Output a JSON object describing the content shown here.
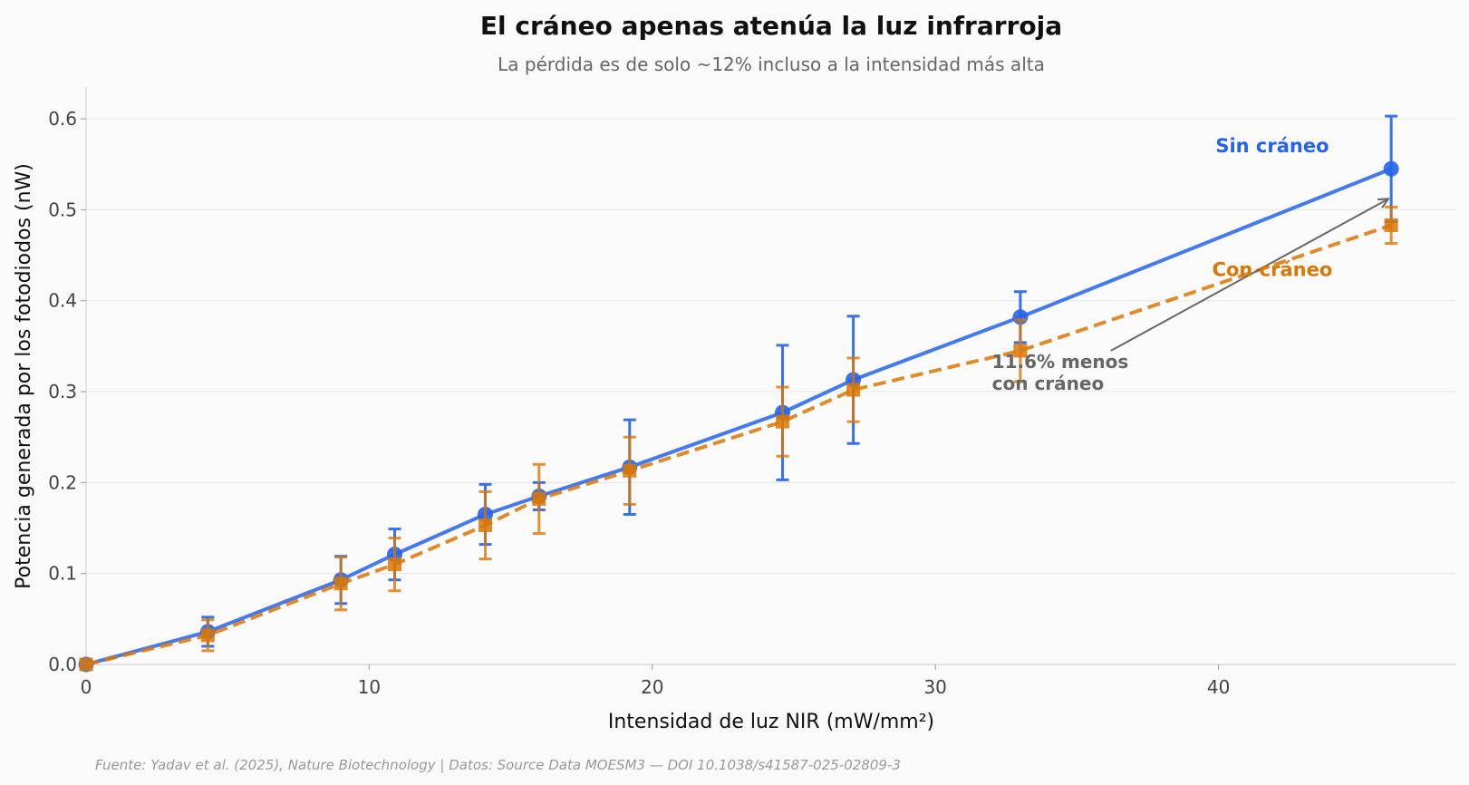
{
  "chart_data": {
    "type": "line",
    "title": "El cráneo apenas atenúa la luz infrarroja",
    "subtitle": "La pérdida es de solo ~12% incluso a la intensidad más alta",
    "xlabel": "Intensidad de luz NIR (mW/mm²)",
    "ylabel": "Potencia generada por los fotodiodos (nW)",
    "xlim": [
      0,
      48.4
    ],
    "ylim": [
      0,
      0.635
    ],
    "xticks": [
      0,
      10,
      20,
      30,
      40
    ],
    "xtick_labels": [
      "0",
      "10",
      "20",
      "30",
      "40"
    ],
    "yticks": [
      0.0,
      0.1,
      0.2,
      0.3,
      0.4,
      0.5,
      0.6
    ],
    "ytick_labels": [
      "0.0",
      "0.1",
      "0.2",
      "0.3",
      "0.4",
      "0.5",
      "0.6"
    ],
    "grid": "horizontal",
    "series": [
      {
        "name": "Sin cráneo",
        "color": "#2563eb",
        "line": "solid",
        "marker": "circle",
        "x": [
          0,
          4.3,
          9.0,
          10.9,
          14.1,
          16.0,
          19.2,
          24.6,
          27.1,
          33.0,
          46.1
        ],
        "y": [
          0.0,
          0.036,
          0.093,
          0.121,
          0.165,
          0.185,
          0.217,
          0.277,
          0.313,
          0.382,
          0.545
        ],
        "err": [
          0.0,
          0.016,
          0.026,
          0.028,
          0.033,
          0.015,
          0.052,
          0.074,
          0.07,
          0.028,
          0.058
        ]
      },
      {
        "name": "Con cráneo",
        "color": "#d97706",
        "line": "dashed",
        "marker": "square",
        "x": [
          0,
          4.3,
          9.0,
          10.9,
          14.1,
          16.0,
          19.2,
          24.6,
          27.1,
          33.0,
          46.1
        ],
        "y": [
          0.0,
          0.032,
          0.089,
          0.11,
          0.153,
          0.182,
          0.213,
          0.267,
          0.302,
          0.345,
          0.483
        ],
        "err": [
          0.0,
          0.017,
          0.029,
          0.029,
          0.037,
          0.038,
          0.037,
          0.038,
          0.035,
          0.034,
          0.02
        ]
      }
    ],
    "annotation": {
      "line1": "11.6% menos",
      "line2": "con cráneo",
      "text_at": [
        32.0,
        0.31
      ],
      "arrow_from": [
        36.2,
        0.345
      ],
      "arrow_to": [
        46.0,
        0.512
      ]
    },
    "series_label_positions": [
      {
        "series": "Sin cráneo",
        "x": 41.9,
        "y": 0.563
      },
      {
        "series": "Con cráneo",
        "x": 41.9,
        "y": 0.427
      }
    ],
    "source": "Fuente: Yadav et al. (2025), Nature Biotechnology | Datos: Source Data MOESM3 — DOI 10.1038/s41587-025-02809-3"
  }
}
